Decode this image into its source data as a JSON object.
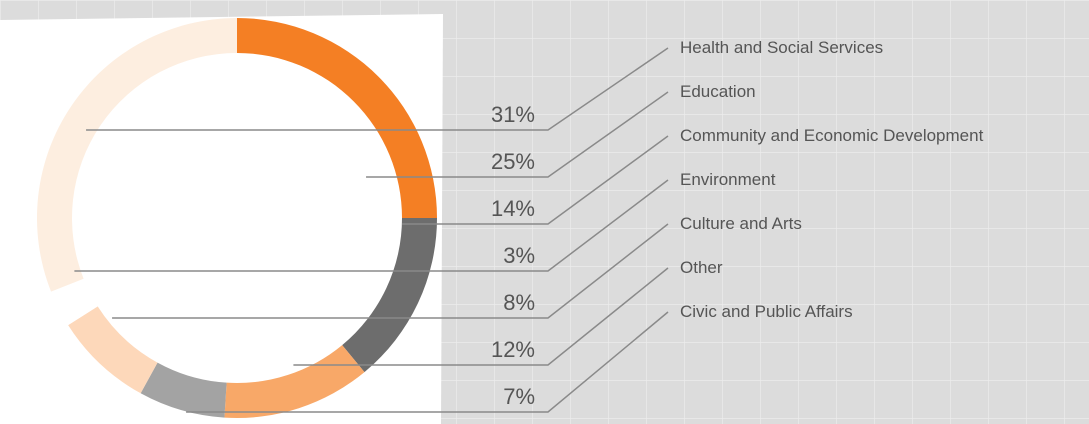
{
  "chart_data": {
    "type": "donut",
    "categories": [
      "Health and Social Services",
      "Education",
      "Community and Economic Development",
      "Environment",
      "Culture and Arts",
      "Other",
      "Civic and Public Affairs"
    ],
    "values": [
      31,
      25,
      14,
      3,
      8,
      12,
      7
    ],
    "value_labels": [
      "31%",
      "25%",
      "14%",
      "3%",
      "8%",
      "12%",
      "7%"
    ],
    "colors": [
      "#fdeee0",
      "#f47f24",
      "#6d6d6d",
      "#ffffff",
      "#fdd8ba",
      "#f8a868",
      "#a3a3a3"
    ]
  }
}
